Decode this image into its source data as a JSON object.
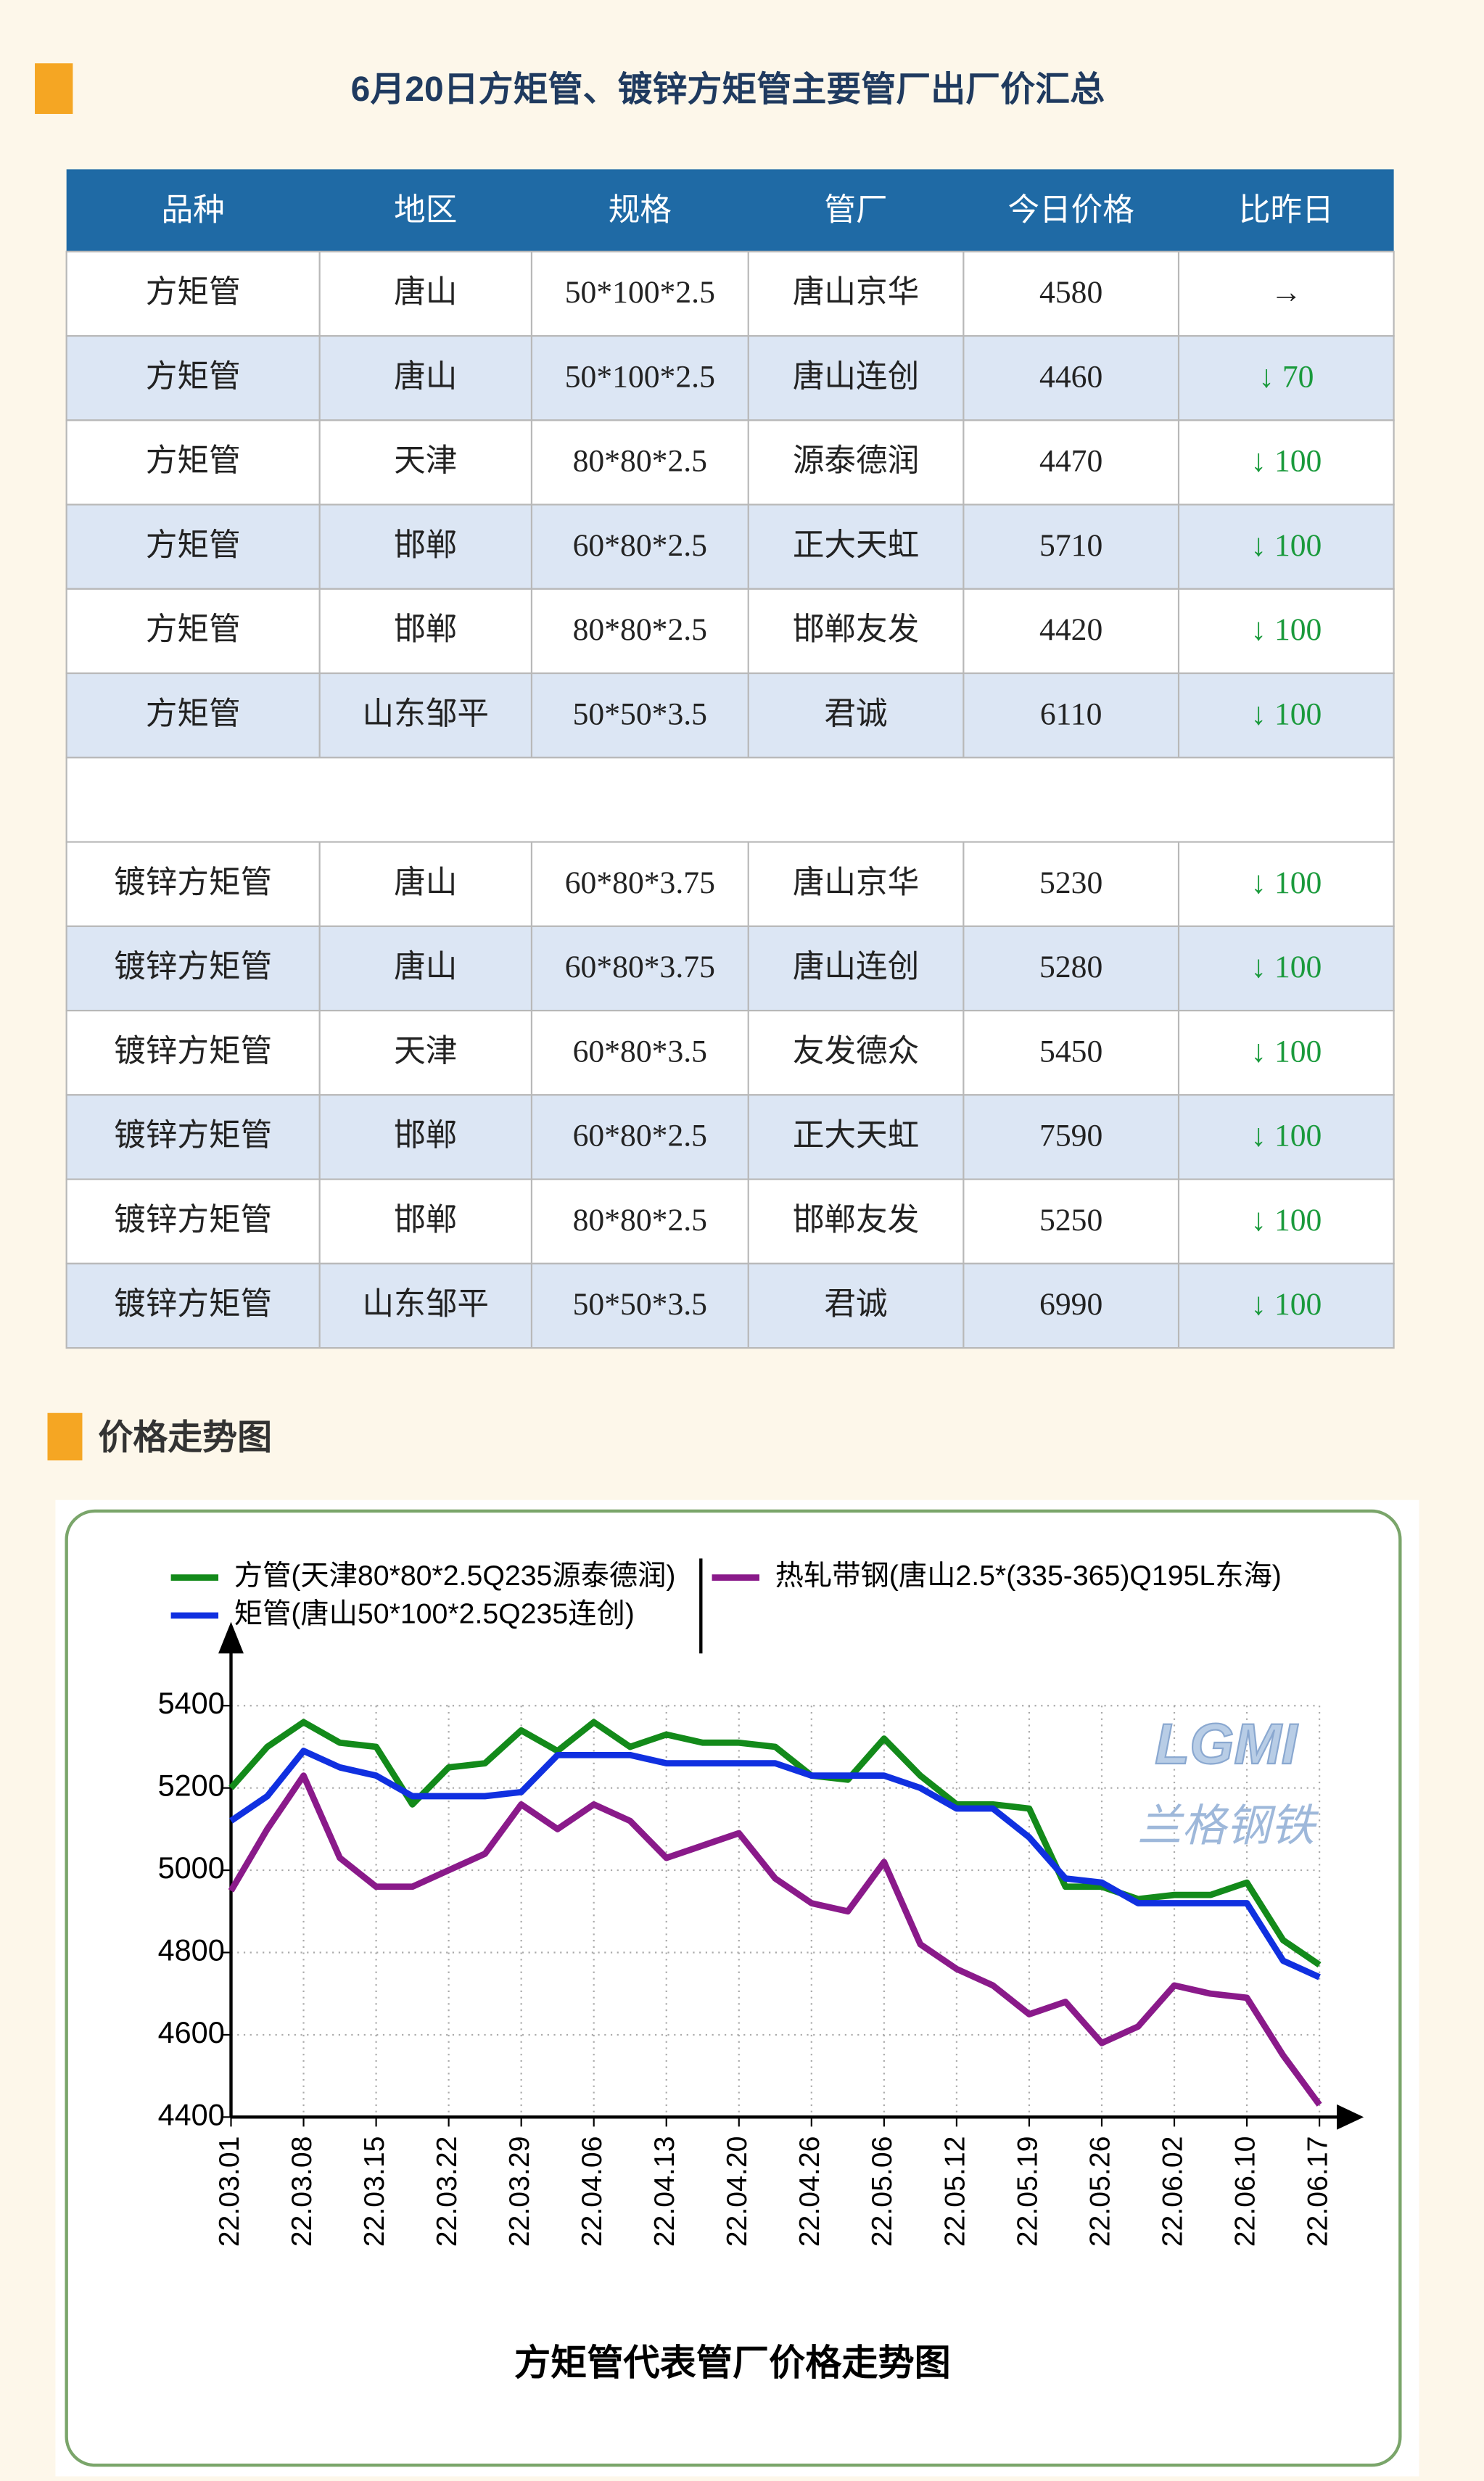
{
  "header": {
    "title": "6月20日方矩管、镀锌方矩管主要管厂出厂价汇总"
  },
  "table": {
    "columns": [
      "品种",
      "地区",
      "规格",
      "管厂",
      "今日价格",
      "比昨日"
    ],
    "groups": [
      {
        "rows": [
          [
            "方矩管",
            "唐山",
            "50*100*2.5",
            "唐山京华",
            4580,
            "→"
          ],
          [
            "方矩管",
            "唐山",
            "50*100*2.5",
            "唐山连创",
            4460,
            "↓ 70"
          ],
          [
            "方矩管",
            "天津",
            "80*80*2.5",
            "源泰德润",
            4470,
            "↓ 100"
          ],
          [
            "方矩管",
            "邯郸",
            "60*80*2.5",
            "正大天虹",
            5710,
            "↓ 100"
          ],
          [
            "方矩管",
            "邯郸",
            "80*80*2.5",
            "邯郸友发",
            4420,
            "↓ 100"
          ],
          [
            "方矩管",
            "山东邹平",
            "50*50*3.5",
            "君诚",
            6110,
            "↓ 100"
          ]
        ]
      },
      {
        "rows": [
          [
            "镀锌方矩管",
            "唐山",
            "60*80*3.75",
            "唐山京华",
            5230,
            "↓ 100"
          ],
          [
            "镀锌方矩管",
            "唐山",
            "60*80*3.75",
            "唐山连创",
            5280,
            "↓ 100"
          ],
          [
            "镀锌方矩管",
            "天津",
            "60*80*3.5",
            "友发德众",
            5450,
            "↓ 100"
          ],
          [
            "镀锌方矩管",
            "邯郸",
            "60*80*2.5",
            "正大天虹",
            7590,
            "↓ 100"
          ],
          [
            "镀锌方矩管",
            "邯郸",
            "80*80*2.5",
            "邯郸友发",
            5250,
            "↓ 100"
          ],
          [
            "镀锌方矩管",
            "山东邹平",
            "50*50*3.5",
            "君诚",
            6990,
            "↓ 100"
          ]
        ]
      }
    ]
  },
  "section": {
    "title": "价格走势图"
  },
  "chart_data": {
    "type": "line",
    "title": "方矩管代表管厂价格走势图",
    "logo": "LGMI",
    "logo_text": "兰格钢铁",
    "categories": [
      "22.03.01",
      null,
      "22.03.08",
      null,
      "22.03.15",
      null,
      "22.03.22",
      null,
      "22.03.29",
      null,
      "22.04.06",
      null,
      "22.04.13",
      null,
      "22.04.20",
      null,
      "22.04.26",
      null,
      "22.05.06",
      null,
      "22.05.12",
      null,
      "22.05.19",
      null,
      "22.05.26",
      null,
      "22.06.02",
      null,
      "22.06.10",
      null,
      "22.06.17"
    ],
    "ylim": [
      4400,
      5400
    ],
    "yticks": [
      4400,
      4600,
      4800,
      5000,
      5200,
      5400
    ],
    "grid": true,
    "series": [
      {
        "name": "方管(天津80*80*2.5Q235源泰德润)",
        "color": "#138a1a",
        "values": [
          5200,
          5300,
          5360,
          5310,
          5300,
          5160,
          5250,
          5260,
          5340,
          5290,
          5360,
          5300,
          5330,
          5310,
          5310,
          5300,
          5230,
          5220,
          5320,
          5230,
          5160,
          5160,
          5150,
          4960,
          4960,
          4930,
          4940,
          4940,
          4970,
          4830,
          4770
        ]
      },
      {
        "name": "矩管(唐山50*100*2.5Q235连创)",
        "color": "#1030e0",
        "values": [
          5120,
          5180,
          5290,
          5250,
          5230,
          5180,
          5180,
          5180,
          5190,
          5280,
          5280,
          5280,
          5260,
          5260,
          5260,
          5260,
          5230,
          5230,
          5230,
          5200,
          5150,
          5150,
          5080,
          4980,
          4970,
          4920,
          4920,
          4920,
          4920,
          4780,
          4740
        ]
      },
      {
        "name": "热轧带钢(唐山2.5*(335-365)Q195L东海)",
        "color": "#8a1a8a",
        "values": [
          4950,
          5100,
          5230,
          5030,
          4960,
          4960,
          5000,
          5040,
          5160,
          5100,
          5160,
          5120,
          5030,
          5060,
          5090,
          4980,
          4920,
          4900,
          5020,
          4820,
          4760,
          4720,
          4650,
          4680,
          4580,
          4620,
          4720,
          4700,
          4690,
          4550,
          4430
        ]
      }
    ]
  }
}
